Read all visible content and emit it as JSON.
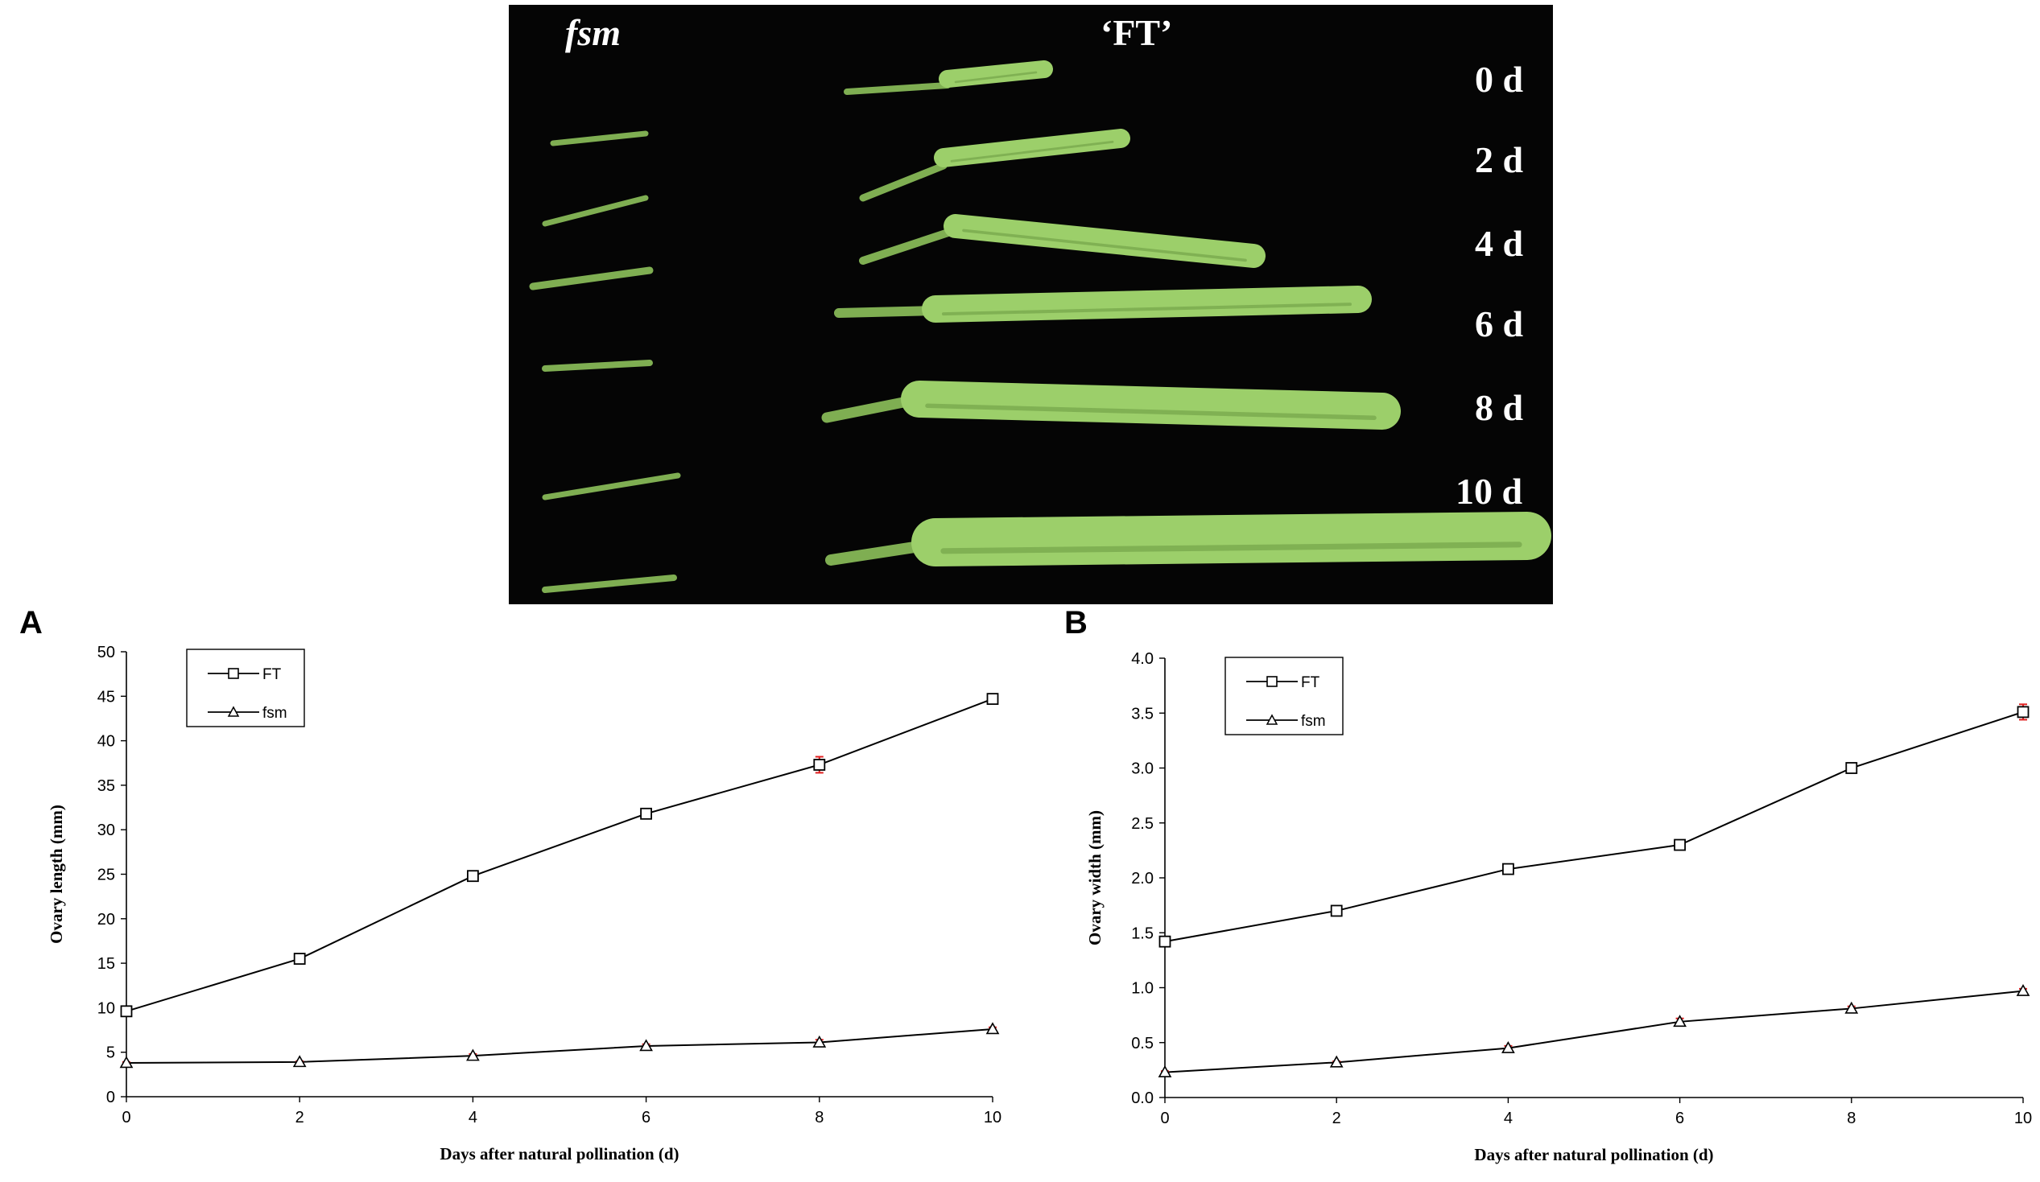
{
  "photo": {
    "label_fsm": "fsm",
    "label_ft": "‘FT’",
    "day_labels": [
      "0 d",
      "2 d",
      "4 d",
      "6 d",
      "8 d",
      "10 d"
    ],
    "colors": {
      "background": "#050505",
      "pod": "#9ccf6a",
      "pod_dark": "#6f9e45",
      "stalk": "#7fae52"
    }
  },
  "panels": {
    "a": "A",
    "b": "B"
  },
  "chart_data": [
    {
      "type": "line",
      "panel": "A",
      "title": "",
      "xlabel": "Days after natural pollination (d)",
      "ylabel": "Ovary length (mm)",
      "x": [
        0,
        2,
        4,
        6,
        8,
        10
      ],
      "xlim": [
        0,
        10
      ],
      "ylim": [
        0,
        50
      ],
      "xticks": [
        0,
        2,
        4,
        6,
        8,
        10
      ],
      "yticks": [
        0,
        5,
        10,
        15,
        20,
        25,
        30,
        35,
        40,
        45,
        50
      ],
      "grid": false,
      "legend_position": "top-left",
      "series": [
        {
          "name": "FT",
          "marker": "square",
          "values": [
            9.6,
            15.5,
            24.8,
            31.8,
            37.3,
            44.7
          ],
          "errors": [
            0.3,
            0.3,
            0.4,
            0.5,
            0.9,
            0.4
          ]
        },
        {
          "name": "fsm",
          "marker": "triangle",
          "values": [
            3.8,
            3.9,
            4.6,
            5.7,
            6.1,
            7.6
          ],
          "errors": [
            0.1,
            0.1,
            0.2,
            0.2,
            0.3,
            0.2
          ]
        }
      ],
      "error_bar_color": "#e02020"
    },
    {
      "type": "line",
      "panel": "B",
      "title": "",
      "xlabel": "Days after natural pollination (d)",
      "ylabel": "Ovary width (mm)",
      "x": [
        0,
        2,
        4,
        6,
        8,
        10
      ],
      "xlim": [
        0,
        10
      ],
      "ylim": [
        0,
        4
      ],
      "xticks": [
        0,
        2,
        4,
        6,
        8,
        10
      ],
      "yticks": [
        "0.0",
        "0.5",
        "1.0",
        "1.5",
        "2.0",
        "2.5",
        "3.0",
        "3.5",
        "4.0"
      ],
      "grid": false,
      "legend_position": "top-left",
      "series": [
        {
          "name": "FT",
          "marker": "square",
          "values": [
            1.42,
            1.7,
            2.08,
            2.3,
            3.0,
            3.51
          ],
          "errors": [
            0.02,
            0.02,
            0.03,
            0.03,
            0.04,
            0.07
          ]
        },
        {
          "name": "fsm",
          "marker": "triangle",
          "values": [
            0.23,
            0.32,
            0.45,
            0.69,
            0.81,
            0.97
          ],
          "errors": [
            0.01,
            0.01,
            0.02,
            0.03,
            0.02,
            0.02
          ]
        }
      ],
      "error_bar_color": "#e02020"
    }
  ]
}
